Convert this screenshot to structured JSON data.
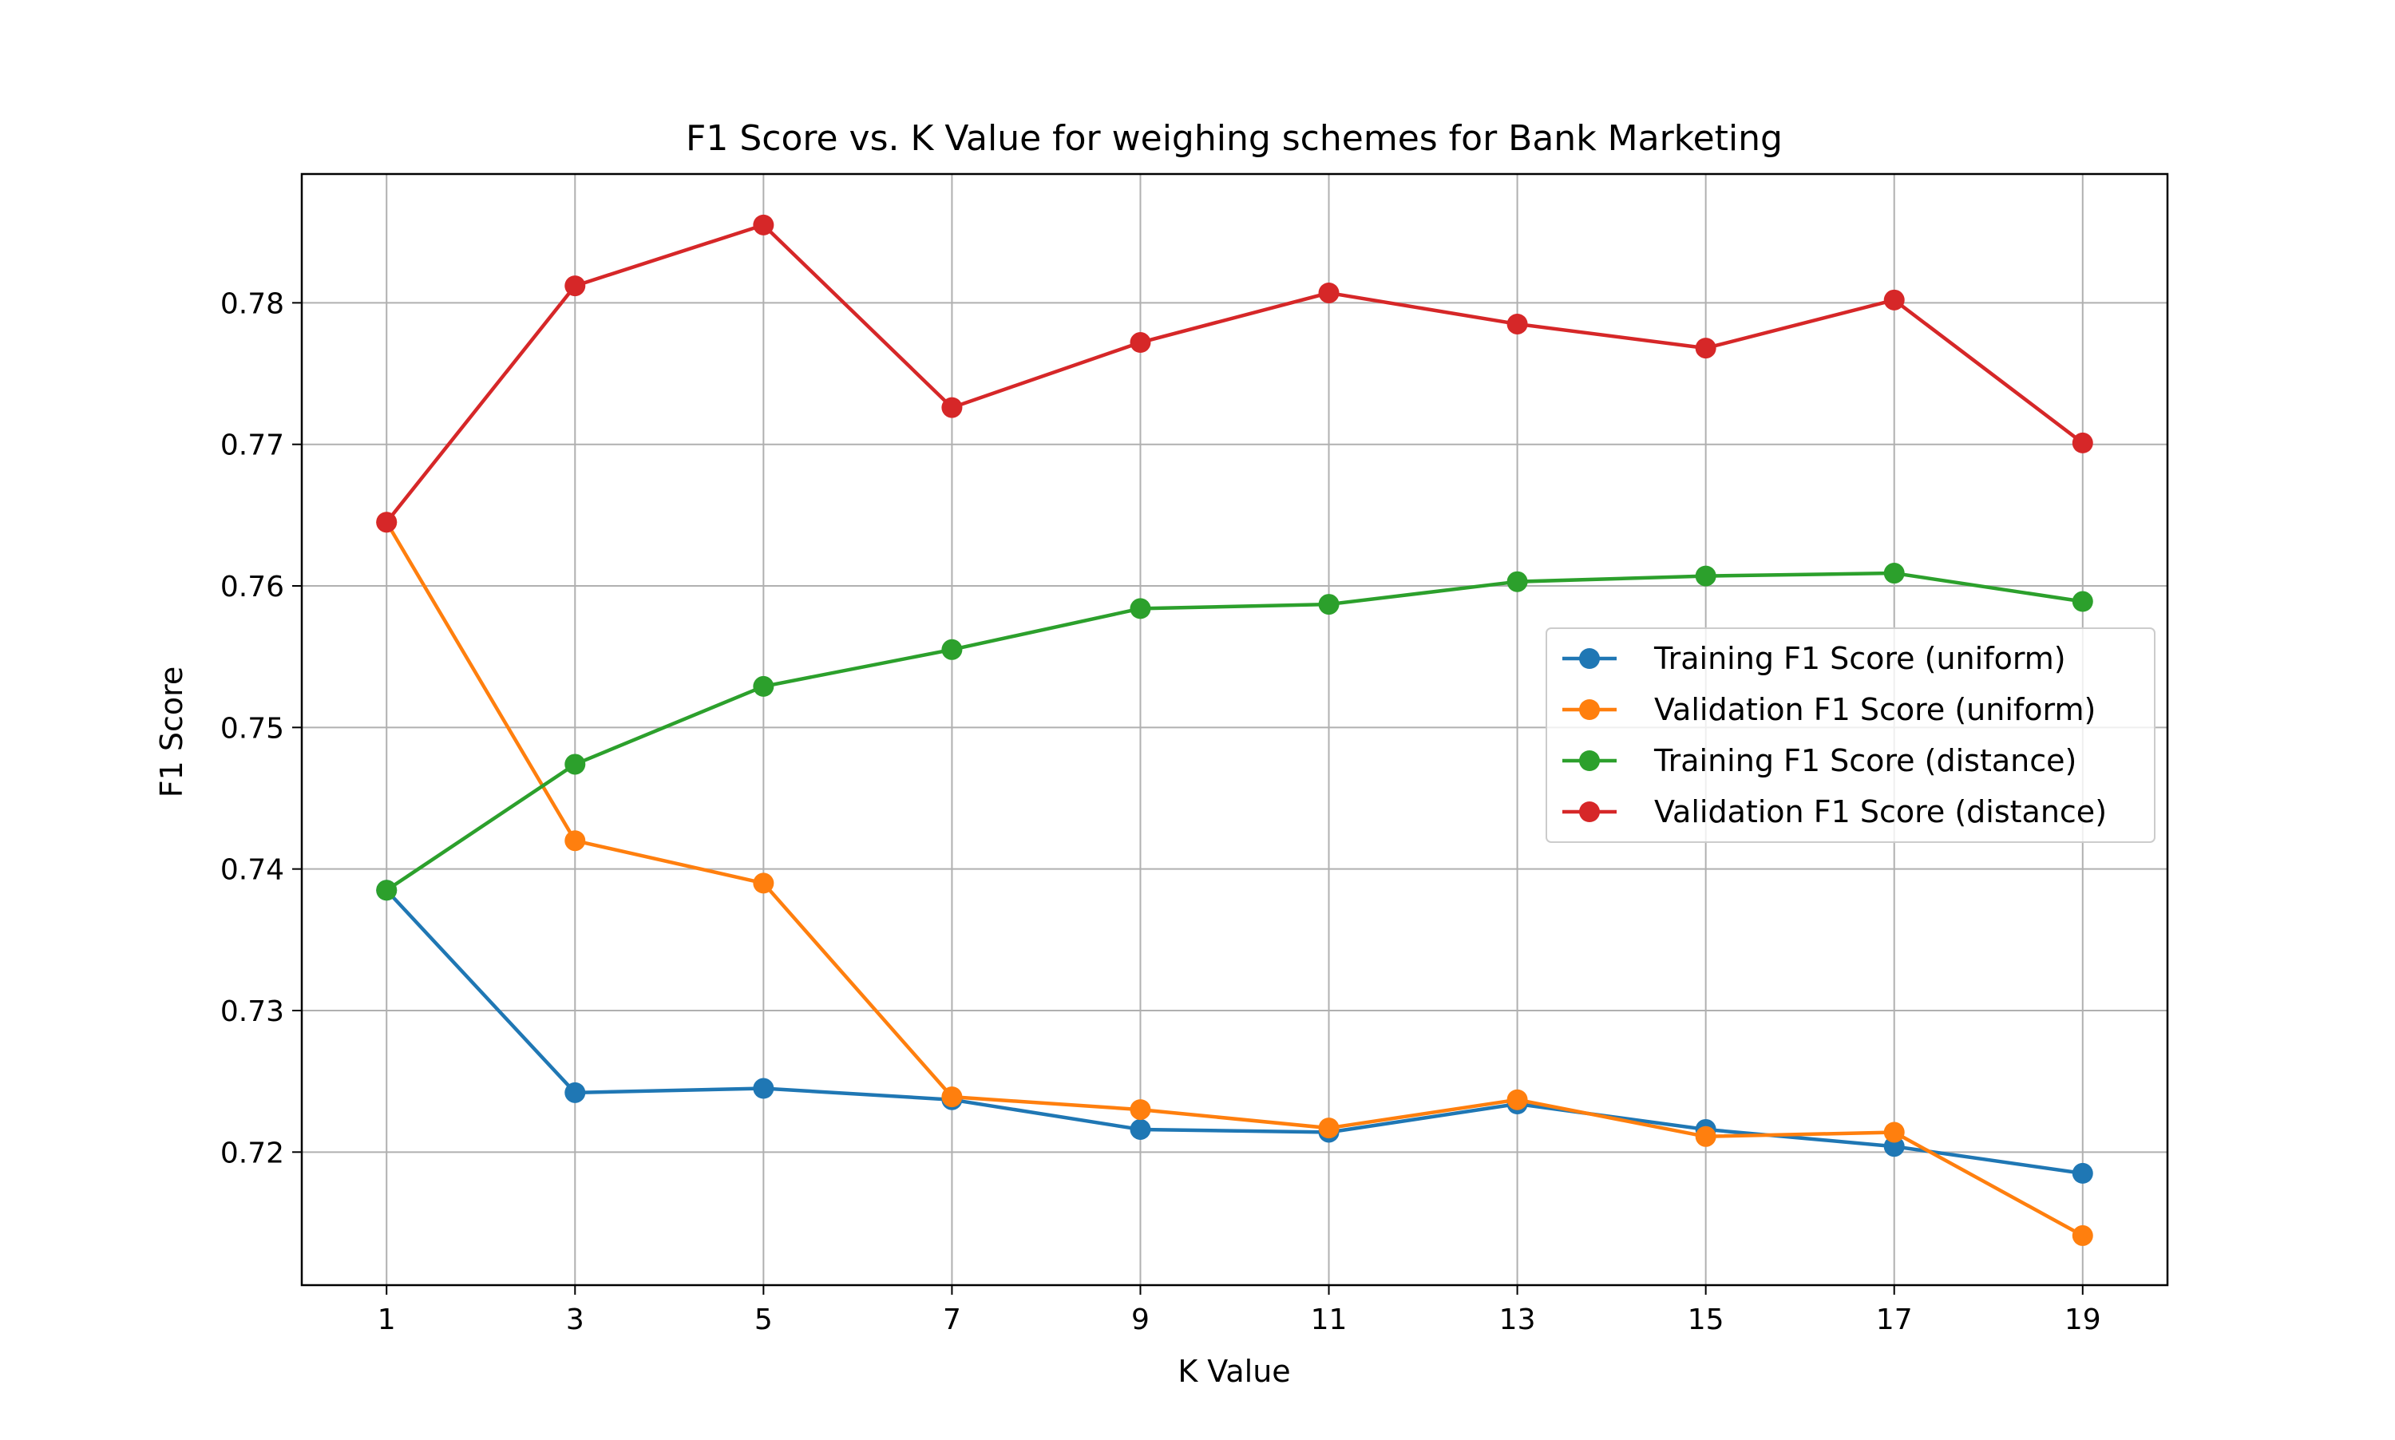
{
  "chart_data": {
    "type": "line",
    "title": "F1 Score vs. K Value for weighing schemes for  Bank Marketing",
    "xlabel": "K Value",
    "ylabel": "F1 Score",
    "x": [
      1,
      3,
      5,
      7,
      9,
      11,
      13,
      15,
      17,
      19
    ],
    "xticks": [
      "1",
      "3",
      "5",
      "7",
      "9",
      "11",
      "13",
      "15",
      "17",
      "19"
    ],
    "xlim": [
      0.1,
      19.9
    ],
    "ylim": [
      0.7106,
      0.7891
    ],
    "yticks": [
      0.72,
      0.73,
      0.74,
      0.75,
      0.76,
      0.77,
      0.78
    ],
    "ytick_labels": [
      "0.72",
      "0.73",
      "0.74",
      "0.75",
      "0.76",
      "0.77",
      "0.78"
    ],
    "grid": true,
    "legend_position": "center-right",
    "series": [
      {
        "name": "Training F1 Score (uniform)",
        "color": "#1f77b4",
        "values": [
          0.7385,
          0.7242,
          0.7245,
          0.7237,
          0.7216,
          0.7214,
          0.7234,
          0.7216,
          0.7204,
          0.7185
        ]
      },
      {
        "name": "Validation F1 Score (uniform)",
        "color": "#ff7f0e",
        "values": [
          0.7645,
          0.742,
          0.739,
          0.7239,
          0.723,
          0.7217,
          0.7237,
          0.7211,
          0.7214,
          0.7141
        ]
      },
      {
        "name": "Training F1 Score (distance)",
        "color": "#2ca02c",
        "values": [
          0.7385,
          0.7474,
          0.7529,
          0.7555,
          0.7584,
          0.7587,
          0.7603,
          0.7607,
          0.7609,
          0.7589
        ]
      },
      {
        "name": "Validation F1 Score (distance)",
        "color": "#d62728",
        "values": [
          0.7645,
          0.7812,
          0.7855,
          0.7726,
          0.7772,
          0.7807,
          0.7785,
          0.7768,
          0.7802,
          0.7701
        ]
      }
    ]
  }
}
